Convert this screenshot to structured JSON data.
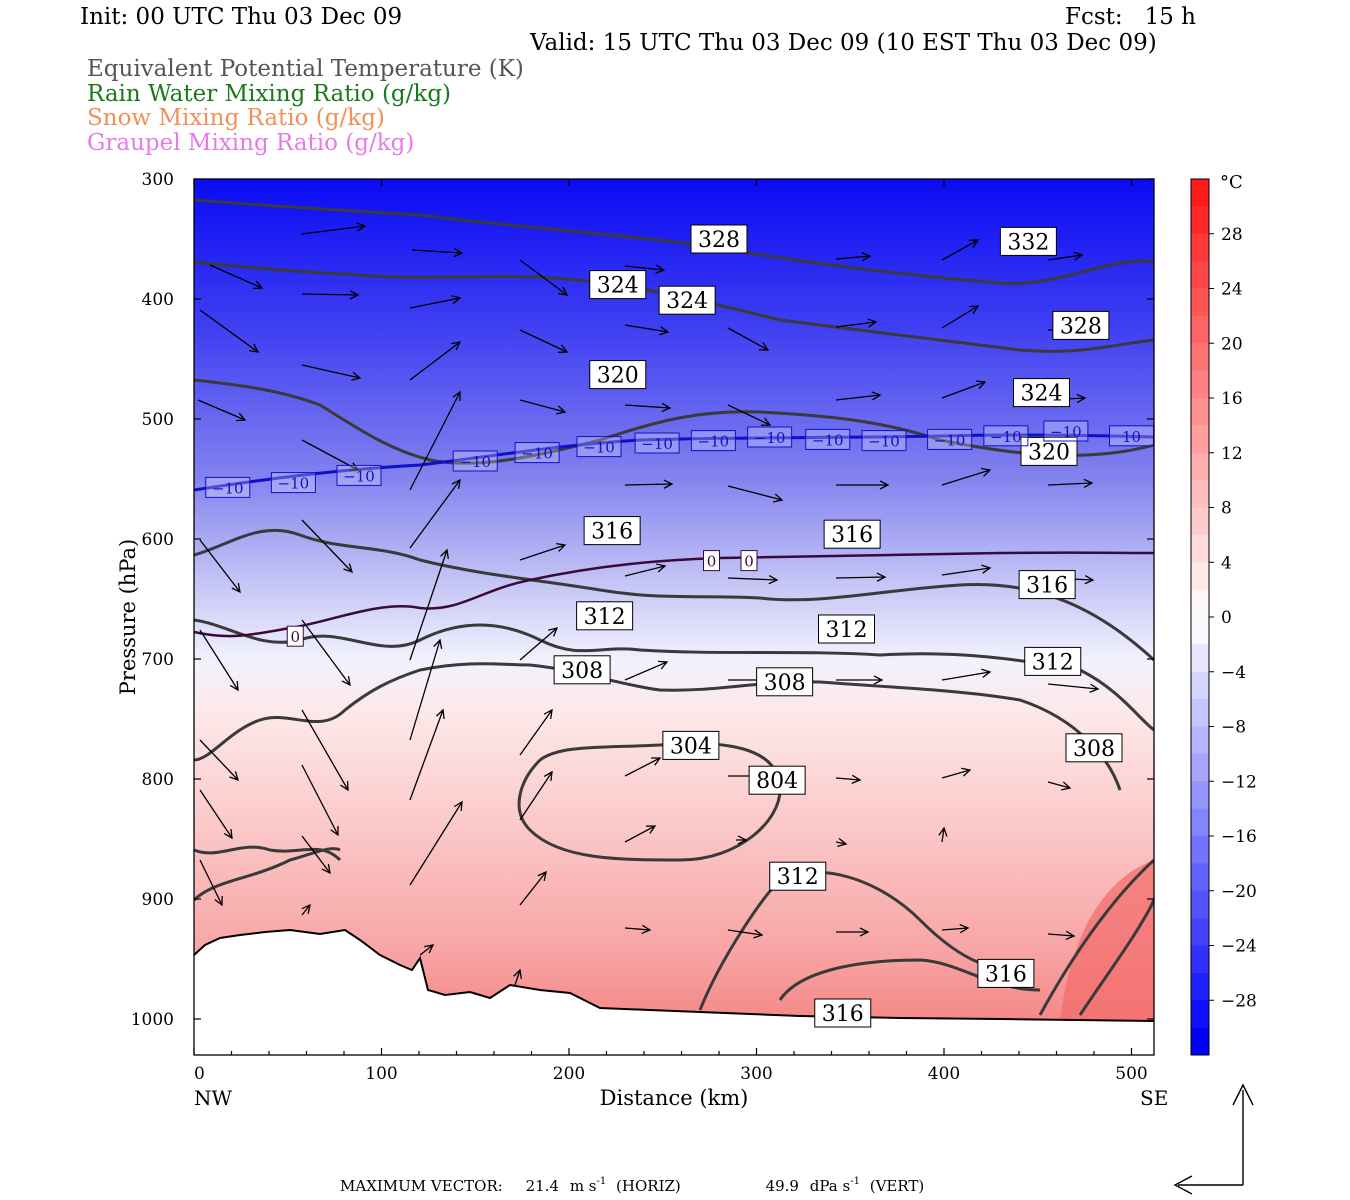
{
  "header": {
    "init": "Init: 00 UTC Thu 03 Dec 09",
    "fcst": "Fcst:   15 h",
    "valid": "Valid: 15 UTC Thu 03 Dec 09 (10 EST Thu 03 Dec 09)"
  },
  "legend": [
    {
      "label": "Equivalent Potential Temperature (K)",
      "color": "#555555"
    },
    {
      "label": "Rain Water Mixing Ratio (g/kg)",
      "color": "#1a7a1a"
    },
    {
      "label": "Snow Mixing Ratio (g/kg)",
      "color": "#f0905a"
    },
    {
      "label": "Graupel Mixing Ratio (g/kg)",
      "color": "#e87ae8"
    }
  ],
  "chart_data": {
    "type": "cross-section",
    "xlabel": "Distance (km)",
    "ylabel": "Pressure (hPa)",
    "x_range": [
      0,
      512
    ],
    "y_range": [
      1030,
      300
    ],
    "x_ticks": [
      "0",
      "100",
      "200",
      "300",
      "400",
      "500"
    ],
    "y_ticks": [
      "300",
      "400",
      "500",
      "600",
      "700",
      "800",
      "900",
      "1000"
    ],
    "x_end_labels": {
      "left": "NW",
      "right": "SE"
    },
    "colorbar": {
      "unit": "°C",
      "tick_labels": [
        "28",
        "24",
        "20",
        "16",
        "12",
        "8",
        "4",
        "0",
        "-4",
        "-8",
        "-12",
        "-16",
        "-20",
        "-24",
        "-28"
      ],
      "warm_color": "#ff1a1a",
      "cold_color": "#0000ff"
    },
    "theta_e_labels": [
      {
        "text": "328",
        "x": 280,
        "p": 350
      },
      {
        "text": "332",
        "x": 445,
        "p": 352
      },
      {
        "text": "324",
        "x": 226,
        "p": 388
      },
      {
        "text": "324",
        "x": 263,
        "p": 401
      },
      {
        "text": "328",
        "x": 473,
        "p": 422
      },
      {
        "text": "320",
        "x": 226,
        "p": 463
      },
      {
        "text": "324",
        "x": 452,
        "p": 478
      },
      {
        "text": "320",
        "x": 456,
        "p": 527
      },
      {
        "text": "316",
        "x": 223,
        "p": 593
      },
      {
        "text": "316",
        "x": 351,
        "p": 596
      },
      {
        "text": "316",
        "x": 455,
        "p": 638
      },
      {
        "text": "312",
        "x": 219,
        "p": 664
      },
      {
        "text": "312",
        "x": 348,
        "p": 675
      },
      {
        "text": "312",
        "x": 458,
        "p": 702
      },
      {
        "text": "308",
        "x": 207,
        "p": 709
      },
      {
        "text": "308",
        "x": 315,
        "p": 719
      },
      {
        "text": "304",
        "x": 265,
        "p": 772
      },
      {
        "text": "804",
        "x": 311,
        "p": 801
      },
      {
        "text": "308",
        "x": 480,
        "p": 774
      },
      {
        "text": "312",
        "x": 322,
        "p": 881
      },
      {
        "text": "316",
        "x": 433,
        "p": 962
      },
      {
        "text": "316",
        "x": 346,
        "p": 995
      }
    ],
    "temperature_labels": [
      {
        "text": "-10",
        "x": 18,
        "p": 557
      },
      {
        "text": "-10",
        "x": 53,
        "p": 553
      },
      {
        "text": "-10",
        "x": 88,
        "p": 547
      },
      {
        "text": "-10",
        "x": 150,
        "p": 535
      },
      {
        "text": "-10",
        "x": 183,
        "p": 528
      },
      {
        "text": "-10",
        "x": 216,
        "p": 523
      },
      {
        "text": "-10",
        "x": 247,
        "p": 520
      },
      {
        "text": "-10",
        "x": 277,
        "p": 518
      },
      {
        "text": "-10",
        "x": 307,
        "p": 515
      },
      {
        "text": "-10",
        "x": 338,
        "p": 517
      },
      {
        "text": "-10",
        "x": 368,
        "p": 518
      },
      {
        "text": "-10",
        "x": 403,
        "p": 517
      },
      {
        "text": "-10",
        "x": 433,
        "p": 514
      },
      {
        "text": "-10",
        "x": 465,
        "p": 510
      },
      {
        "text": "10",
        "x": 500,
        "p": 514
      },
      {
        "text": "0",
        "x": 54,
        "p": 681
      },
      {
        "text": "0",
        "x": 276,
        "p": 618
      },
      {
        "text": "0",
        "x": 296,
        "p": 618
      }
    ]
  },
  "footer": {
    "label": "MAXIMUM VECTOR:",
    "horiz_value": "21.4",
    "horiz_unit": "m s",
    "horiz_exp": "-1",
    "horiz_tag": "(HORIZ)",
    "vert_value": "49.9",
    "vert_unit": "dPa s",
    "vert_exp": "-1",
    "vert_tag": "(VERT)"
  }
}
